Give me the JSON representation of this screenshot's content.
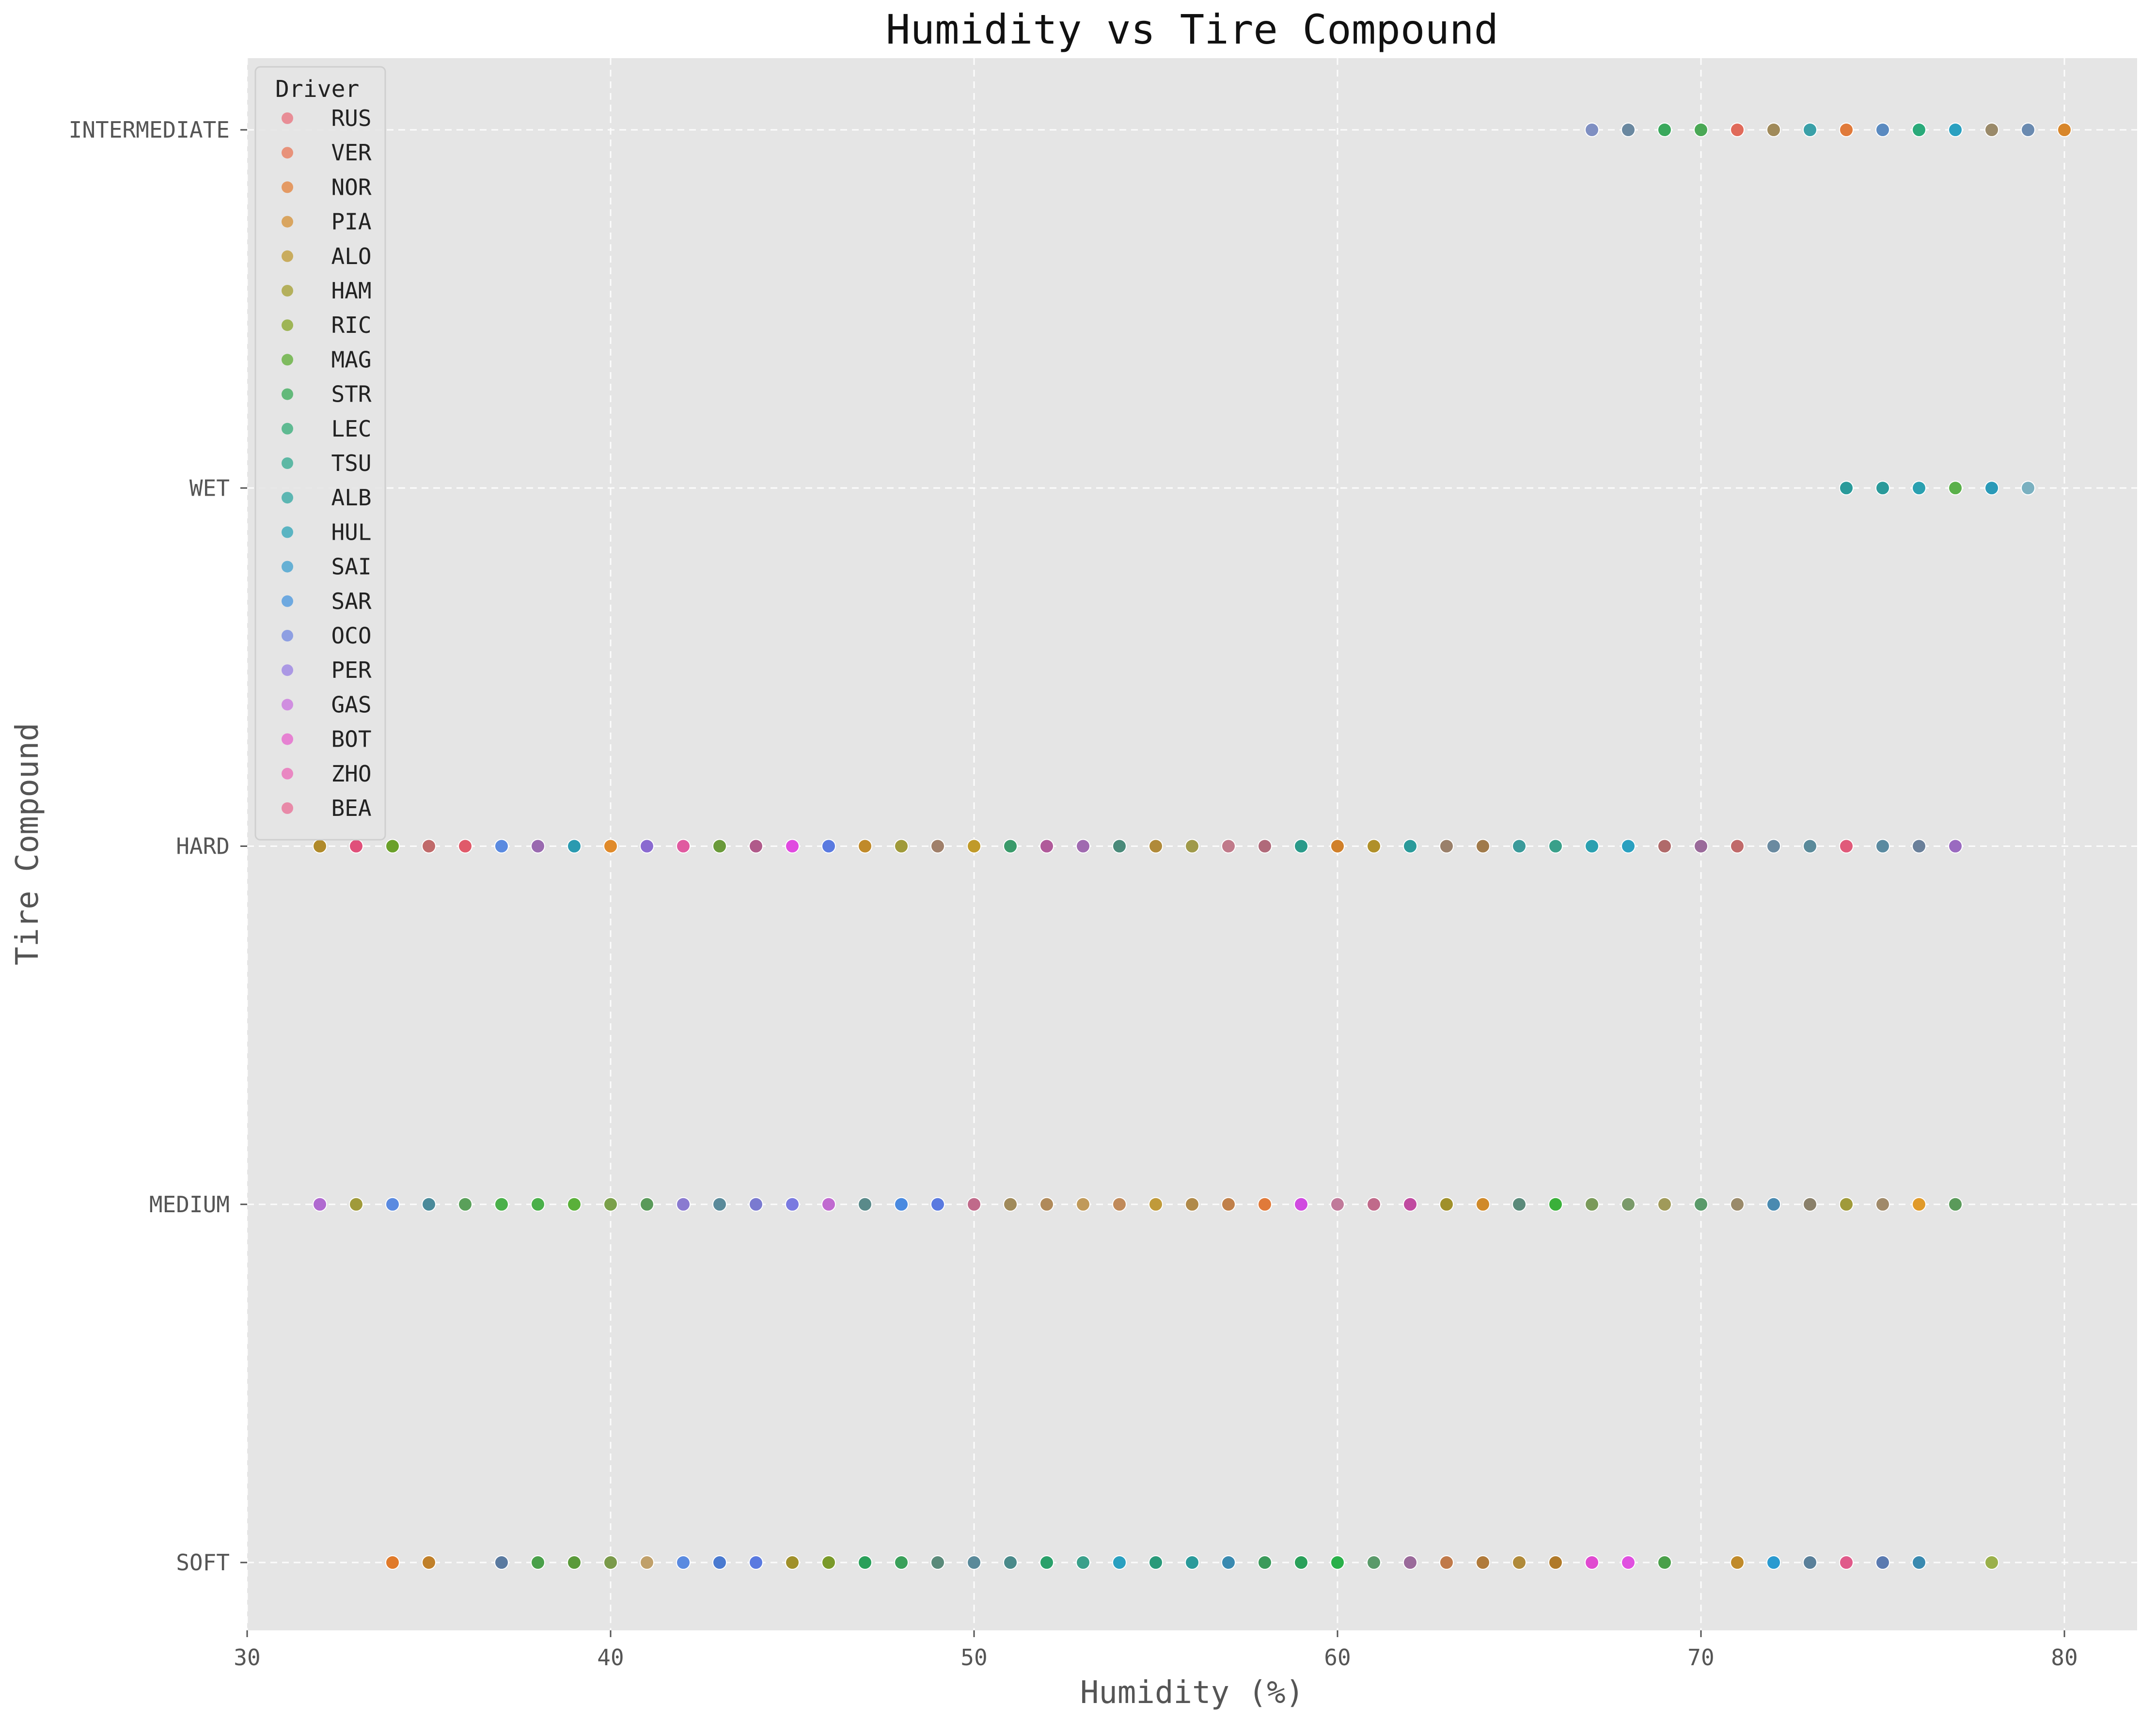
{
  "chart_data": {
    "type": "scatter",
    "title": "Humidity vs Tire Compound",
    "xlabel": "Humidity (%)",
    "ylabel": "Tire Compound",
    "xlim": [
      30,
      82
    ],
    "x_ticks": [
      30,
      40,
      50,
      60,
      70,
      80
    ],
    "categories": [
      "SOFT",
      "MEDIUM",
      "HARD",
      "WET",
      "INTERMEDIATE"
    ],
    "grid": true,
    "legend": {
      "title": "Driver",
      "placement": "top-left",
      "entries": [
        {
          "name": "RUS",
          "color": "#e88d96"
        },
        {
          "name": "VER",
          "color": "#e8927a"
        },
        {
          "name": "NOR",
          "color": "#e49a64"
        },
        {
          "name": "PIA",
          "color": "#d9a560"
        },
        {
          "name": "ALO",
          "color": "#c9ac5e"
        },
        {
          "name": "HAM",
          "color": "#b4b05c"
        },
        {
          "name": "RIC",
          "color": "#9eb556"
        },
        {
          "name": "MAG",
          "color": "#7fbb5f"
        },
        {
          "name": "STR",
          "color": "#63b97a"
        },
        {
          "name": "LEC",
          "color": "#5fba92"
        },
        {
          "name": "TSU",
          "color": "#5db8a4"
        },
        {
          "name": "ALB",
          "color": "#5cb6b2"
        },
        {
          "name": "HUL",
          "color": "#5ab4c2"
        },
        {
          "name": "SAI",
          "color": "#66b0d4"
        },
        {
          "name": "SAR",
          "color": "#6ea9e0"
        },
        {
          "name": "OCO",
          "color": "#8e9fe2"
        },
        {
          "name": "PER",
          "color": "#ab98e4"
        },
        {
          "name": "GAS",
          "color": "#d08ee0"
        },
        {
          "name": "BOT",
          "color": "#e682d2"
        },
        {
          "name": "ZHO",
          "color": "#e987c2"
        },
        {
          "name": "BEA",
          "color": "#e88aa8"
        }
      ]
    },
    "series": [
      {
        "compound": "INTERMEDIATE",
        "x": [
          67,
          68,
          69,
          70,
          71,
          72,
          73,
          74,
          75,
          76,
          77,
          78,
          79,
          80
        ],
        "colors": [
          "#7f8fc2",
          "#6a88a0",
          "#3aa85c",
          "#4aa855",
          "#e06a5a",
          "#a08a5a",
          "#3aa0a8",
          "#e07a3a",
          "#5a8ac0",
          "#2aaa7a",
          "#2aa0c0",
          "#9a8a6a",
          "#6a8ab0",
          "#d8862a"
        ]
      },
      {
        "compound": "WET",
        "x": [
          74,
          75,
          76,
          77,
          78,
          79
        ],
        "colors": [
          "#2a9a9a",
          "#2a9a9a",
          "#2aa0b0",
          "#5ab04a",
          "#2a9ab8",
          "#7ab0c0"
        ]
      },
      {
        "compound": "HARD",
        "x": [
          32,
          33,
          34,
          35,
          36,
          37,
          38,
          39,
          40,
          41,
          42,
          43,
          44,
          45,
          46,
          47,
          48,
          49,
          50,
          51,
          52,
          53,
          54,
          55,
          56,
          57,
          58,
          59,
          60,
          61,
          62,
          63,
          64,
          65,
          66,
          67,
          68,
          69,
          70,
          71,
          72,
          73,
          74,
          75,
          76,
          77
        ],
        "colors": [
          "#b08a2a",
          "#e0507a",
          "#6aa02a",
          "#c06a6a",
          "#e05a6a",
          "#5a8ae0",
          "#9a6ab0",
          "#2a9ab0",
          "#e08a2a",
          "#8a6ad0",
          "#e05aa0",
          "#6a9a3a",
          "#b05a8a",
          "#e04ae0",
          "#5a7ae0",
          "#c08a2a",
          "#a09a3a",
          "#a0806a",
          "#c09a2a",
          "#3a9a6a",
          "#b05a9a",
          "#a06ab0",
          "#4a8a7a",
          "#b08a3a",
          "#a09a4a",
          "#c07a8a",
          "#b06a7a",
          "#2a9a8a",
          "#d0802a",
          "#b0902a",
          "#2a9a9a",
          "#9a806a",
          "#a07a4a",
          "#3a9a9a",
          "#3aa08a",
          "#2aa0b0",
          "#2aa0c0",
          "#b06a6a",
          "#9a6a9a",
          "#c06a6a",
          "#6a8aa0",
          "#5a8a9a",
          "#e05a7a",
          "#5a8aa0",
          "#6a809a",
          "#9a6ac0"
        ]
      },
      {
        "compound": "MEDIUM",
        "x": [
          32,
          33,
          34,
          35,
          36,
          37,
          38,
          39,
          40,
          41,
          42,
          43,
          44,
          45,
          46,
          47,
          48,
          49,
          50,
          51,
          52,
          53,
          54,
          55,
          56,
          57,
          58,
          59,
          60,
          61,
          62,
          63,
          64,
          65,
          66,
          67,
          68,
          69,
          70,
          71,
          72,
          73,
          74,
          75,
          76,
          77
        ],
        "colors": [
          "#b06ad0",
          "#a09a3a",
          "#5a8ae0",
          "#4a8a9a",
          "#5aa05a",
          "#4ab04a",
          "#4ab04a",
          "#5ab03a",
          "#7aa04a",
          "#5a9a5a",
          "#8a7ad0",
          "#5a8a9a",
          "#7a7ad0",
          "#7a7ae0",
          "#c06ad0",
          "#5a8a8a",
          "#4a8ae0",
          "#5a7ae0",
          "#c06a8a",
          "#a08a5a",
          "#b08a5a",
          "#c09a5a",
          "#c08a5a",
          "#c09a3a",
          "#b08a4a",
          "#c0804a",
          "#e07a3a",
          "#d04ae0",
          "#c07a9a",
          "#c06a8a",
          "#c04aa0",
          "#a0902a",
          "#d08a2a",
          "#5a8a7a",
          "#3ab03a",
          "#7a9a5a",
          "#7a9a6a",
          "#a09a5a",
          "#5a9a6a",
          "#9a8a6a",
          "#4a8ab0",
          "#8a806a",
          "#a09a3a",
          "#a08a6a",
          "#e09a2a",
          "#5a9a5a"
        ]
      },
      {
        "compound": "SOFT",
        "x": [
          34,
          35,
          37,
          38,
          39,
          40,
          41,
          42,
          43,
          44,
          45,
          46,
          47,
          48,
          49,
          50,
          51,
          52,
          53,
          54,
          55,
          56,
          57,
          58,
          59,
          60,
          61,
          62,
          63,
          64,
          65,
          66,
          67,
          68,
          69,
          71,
          72,
          73,
          74,
          75,
          76,
          78
        ],
        "colors": [
          "#e07a2a",
          "#c0802a",
          "#5a7aa0",
          "#4aa04a",
          "#5a9a3a",
          "#7a9a4a",
          "#c0a06a",
          "#5a8ae0",
          "#4a7ad0",
          "#5a7ae0",
          "#a0902a",
          "#7a9a2a",
          "#2aa05a",
          "#3aa05a",
          "#5a8a7a",
          "#5a8a9a",
          "#4a8a8a",
          "#2aa06a",
          "#3aa08a",
          "#2aa0c0",
          "#2a9a7a",
          "#2a9a9a",
          "#3a8ab0",
          "#3a9a5a",
          "#2aa05a",
          "#2ab04a",
          "#5a9a6a",
          "#9a6a9a",
          "#c07a4a",
          "#b07a3a",
          "#b08a3a",
          "#b07a2a",
          "#e04ad0",
          "#e050e0",
          "#4aa04a",
          "#c08a2a",
          "#2a9ad0",
          "#5a809a",
          "#e05a8a",
          "#5a7ab0",
          "#3a8ab0",
          "#9ab04a"
        ]
      }
    ]
  }
}
